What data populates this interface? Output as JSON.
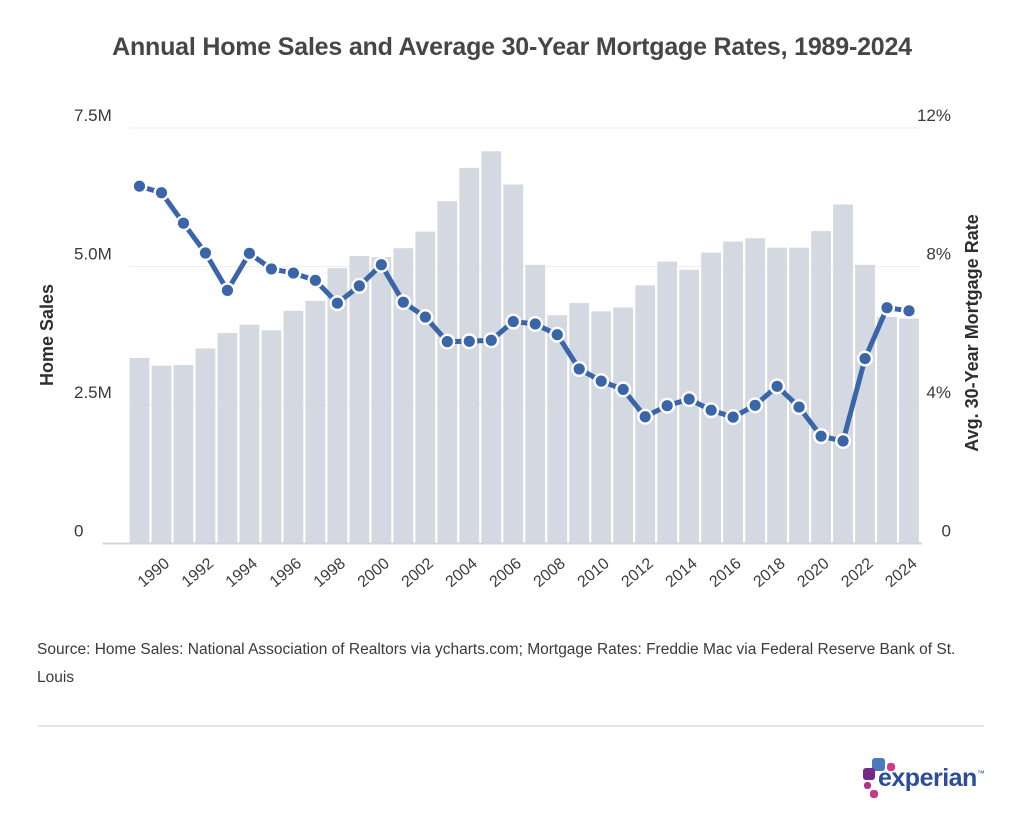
{
  "title": "Annual Home Sales and Average 30-Year Mortgage Rates, 1989-2024",
  "source": {
    "line1": "Source: Home Sales: National Association of Realtors via ycharts.com; Mortgage Rates: Freddie Mac via Federal Reserve Bank of St.",
    "line2": "Louis"
  },
  "logo": {
    "text": "experian",
    "tm": "™"
  },
  "chart_data": {
    "type": "bar",
    "subtype": "bar-and-line-dual-axis",
    "x": [
      1989,
      1990,
      1991,
      1992,
      1993,
      1994,
      1995,
      1996,
      1997,
      1998,
      1999,
      2000,
      2001,
      2002,
      2003,
      2004,
      2005,
      2006,
      2007,
      2008,
      2009,
      2010,
      2011,
      2012,
      2013,
      2014,
      2015,
      2016,
      2017,
      2018,
      2019,
      2020,
      2021,
      2022,
      2023,
      2024
    ],
    "x_tick_labels": [
      "1990",
      "1992",
      "1994",
      "1996",
      "1998",
      "2000",
      "2002",
      "2004",
      "2006",
      "2008",
      "2010",
      "2012",
      "2014",
      "2016",
      "2018",
      "2020",
      "2022",
      "2024"
    ],
    "series": [
      {
        "name": "Home Sales",
        "type": "bar",
        "axis": "left",
        "unit": "millions",
        "color": "#d4d8e1",
        "values": [
          3.35,
          3.21,
          3.22,
          3.52,
          3.8,
          3.95,
          3.85,
          4.2,
          4.38,
          4.97,
          5.19,
          5.17,
          5.33,
          5.63,
          6.18,
          6.78,
          7.08,
          6.48,
          5.03,
          4.12,
          4.34,
          4.19,
          4.26,
          4.66,
          5.09,
          4.94,
          5.25,
          5.45,
          5.51,
          5.34,
          5.34,
          5.64,
          6.12,
          5.03,
          4.09,
          4.06
        ]
      },
      {
        "name": "Avg. 30-Year Mortgage Rate",
        "type": "line",
        "axis": "right",
        "unit": "%",
        "color": "#3a65a8",
        "marker_stroke": "#ffffff",
        "values": [
          10.32,
          10.13,
          9.25,
          8.39,
          7.31,
          8.38,
          7.93,
          7.81,
          7.6,
          6.94,
          7.44,
          8.05,
          6.97,
          6.54,
          5.83,
          5.84,
          5.87,
          6.41,
          6.34,
          6.03,
          5.04,
          4.69,
          4.45,
          3.66,
          3.98,
          4.17,
          3.85,
          3.65,
          3.99,
          4.54,
          3.94,
          3.1,
          2.96,
          5.34,
          6.81,
          6.72
        ]
      }
    ],
    "left_axis": {
      "label": "Home Sales",
      "range": [
        0,
        7.5
      ],
      "ticks": [
        {
          "label": "0",
          "value": 0
        },
        {
          "label": "2.5M",
          "value": 2.5
        },
        {
          "label": "5.0M",
          "value": 5.0
        },
        {
          "label": "7.5M",
          "value": 7.5
        }
      ]
    },
    "right_axis": {
      "label": "Avg. 30-Year Mortgage Rate",
      "range": [
        0,
        12
      ],
      "ticks": [
        {
          "label": "0",
          "value": 0
        },
        {
          "label": "4%",
          "value": 4
        },
        {
          "label": "8%",
          "value": 8
        },
        {
          "label": "12%",
          "value": 12
        }
      ]
    },
    "grid": "horizontal",
    "grid_color": "#ededf1",
    "baseline_color": "#d2d4da",
    "legend": "none"
  }
}
